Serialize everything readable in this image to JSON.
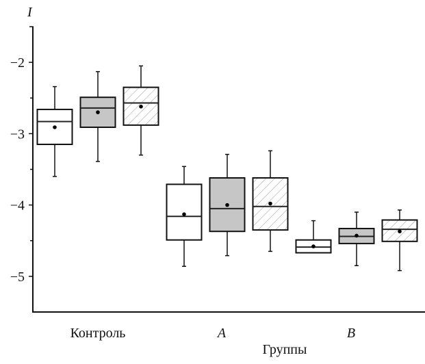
{
  "chart_data": {
    "type": "boxplot",
    "title": "",
    "ylabel": "I",
    "xlabel": "Группы",
    "ylim": [
      -5.5,
      -1.5
    ],
    "yticks": [
      -2,
      -3,
      -4,
      -5
    ],
    "ytick_labels": [
      "−2",
      "−3",
      "−4",
      "−5"
    ],
    "minor_yticks": [
      -2.5,
      -3.5,
      -4.5
    ],
    "grid": false,
    "legend": "none",
    "categories": [
      "Контроль",
      "A",
      "B"
    ],
    "category_italic": [
      false,
      true,
      true
    ],
    "series_styles": [
      {
        "fill": "#ffffff",
        "pattern": "none"
      },
      {
        "fill": "#c6c6c6",
        "pattern": "none"
      },
      {
        "fill": "#ffffff",
        "pattern": "diagonal-hatch"
      }
    ],
    "colors": {
      "stroke": "#111111",
      "gray_fill": "#c6c6c6",
      "hatch": "#9a9a9a"
    },
    "boxes": [
      {
        "category": "Контроль",
        "series": 0,
        "min": -3.6,
        "q1": -3.15,
        "median": -2.83,
        "q3": -2.66,
        "max": -2.34,
        "mean": -2.91
      },
      {
        "category": "Контроль",
        "series": 1,
        "min": -3.39,
        "q1": -2.91,
        "median": -2.64,
        "q3": -2.49,
        "max": -2.13,
        "mean": -2.7
      },
      {
        "category": "Контроль",
        "series": 2,
        "min": -3.3,
        "q1": -2.88,
        "median": -2.57,
        "q3": -2.35,
        "max": -2.05,
        "mean": -2.62
      },
      {
        "category": "A",
        "series": 0,
        "min": -4.86,
        "q1": -4.49,
        "median": -4.16,
        "q3": -3.71,
        "max": -3.46,
        "mean": -4.13
      },
      {
        "category": "A",
        "series": 1,
        "min": -4.71,
        "q1": -4.37,
        "median": -4.05,
        "q3": -3.62,
        "max": -3.29,
        "mean": -4.0
      },
      {
        "category": "A",
        "series": 2,
        "min": -4.65,
        "q1": -4.35,
        "median": -4.02,
        "q3": -3.62,
        "max": -3.24,
        "mean": -3.98
      },
      {
        "category": "B",
        "series": 0,
        "min": -4.67,
        "q1": -4.67,
        "median": -4.59,
        "q3": -4.49,
        "max": -4.22,
        "mean": -4.58
      },
      {
        "category": "B",
        "series": 1,
        "min": -4.85,
        "q1": -4.54,
        "median": -4.44,
        "q3": -4.33,
        "max": -4.1,
        "mean": -4.43
      },
      {
        "category": "B",
        "series": 2,
        "min": -4.92,
        "q1": -4.51,
        "median": -4.34,
        "q3": -4.21,
        "max": -4.07,
        "mean": -4.37
      }
    ]
  }
}
